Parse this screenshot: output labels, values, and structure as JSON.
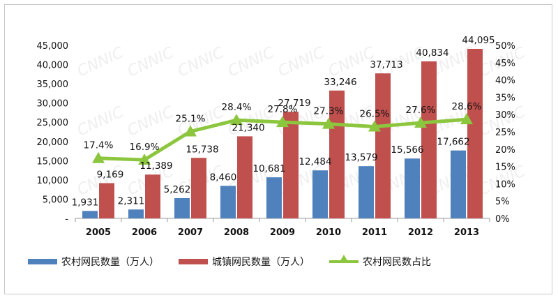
{
  "chart_data": {
    "type": "bar",
    "categories": [
      "2005",
      "2006",
      "2007",
      "2008",
      "2009",
      "2010",
      "2011",
      "2012",
      "2013"
    ],
    "series": [
      {
        "name": "农村网民数量（万人）",
        "type": "bar",
        "axis": "left",
        "color": "#4f81bd",
        "values": [
          1931,
          2311,
          5262,
          8460,
          10681,
          12484,
          13579,
          15566,
          17662
        ],
        "labels": [
          "1,931",
          "2,311",
          "5,262",
          "8,460",
          "10,681",
          "12,484",
          "13,579",
          "15,566",
          "17,662"
        ]
      },
      {
        "name": "城镇网民数量（万人）",
        "type": "bar",
        "axis": "left",
        "color": "#c0504d",
        "values": [
          9169,
          11389,
          15738,
          21340,
          27719,
          33246,
          37713,
          40834,
          44095
        ],
        "labels": [
          "9,169",
          "11,389",
          "15,738",
          "21,340",
          "27,719",
          "33,246",
          "37,713",
          "40,834",
          "44,095"
        ]
      },
      {
        "name": "农村网民数占比",
        "type": "line",
        "axis": "right",
        "color": "#8cc63e",
        "values": [
          17.4,
          16.9,
          25.1,
          28.4,
          27.8,
          27.3,
          26.5,
          27.6,
          28.6
        ],
        "labels": [
          "17.4%",
          "16.9%",
          "25.1%",
          "28.4%",
          "27.8%",
          "27.3%",
          "26.5%",
          "27.6%",
          "28.6%"
        ]
      }
    ],
    "y_left": {
      "min": 0,
      "max": 45000,
      "step": 5000,
      "ticks": [
        "-",
        "5,000",
        "10,000",
        "15,000",
        "20,000",
        "25,000",
        "30,000",
        "35,000",
        "40,000",
        "45,000"
      ]
    },
    "y_right": {
      "min": 0,
      "max": 50,
      "step": 5,
      "ticks": [
        "0%",
        "5%",
        "10%",
        "15%",
        "20%",
        "25%",
        "30%",
        "35%",
        "40%",
        "45%",
        "50%"
      ]
    },
    "legend": "bottom",
    "grid": false
  }
}
